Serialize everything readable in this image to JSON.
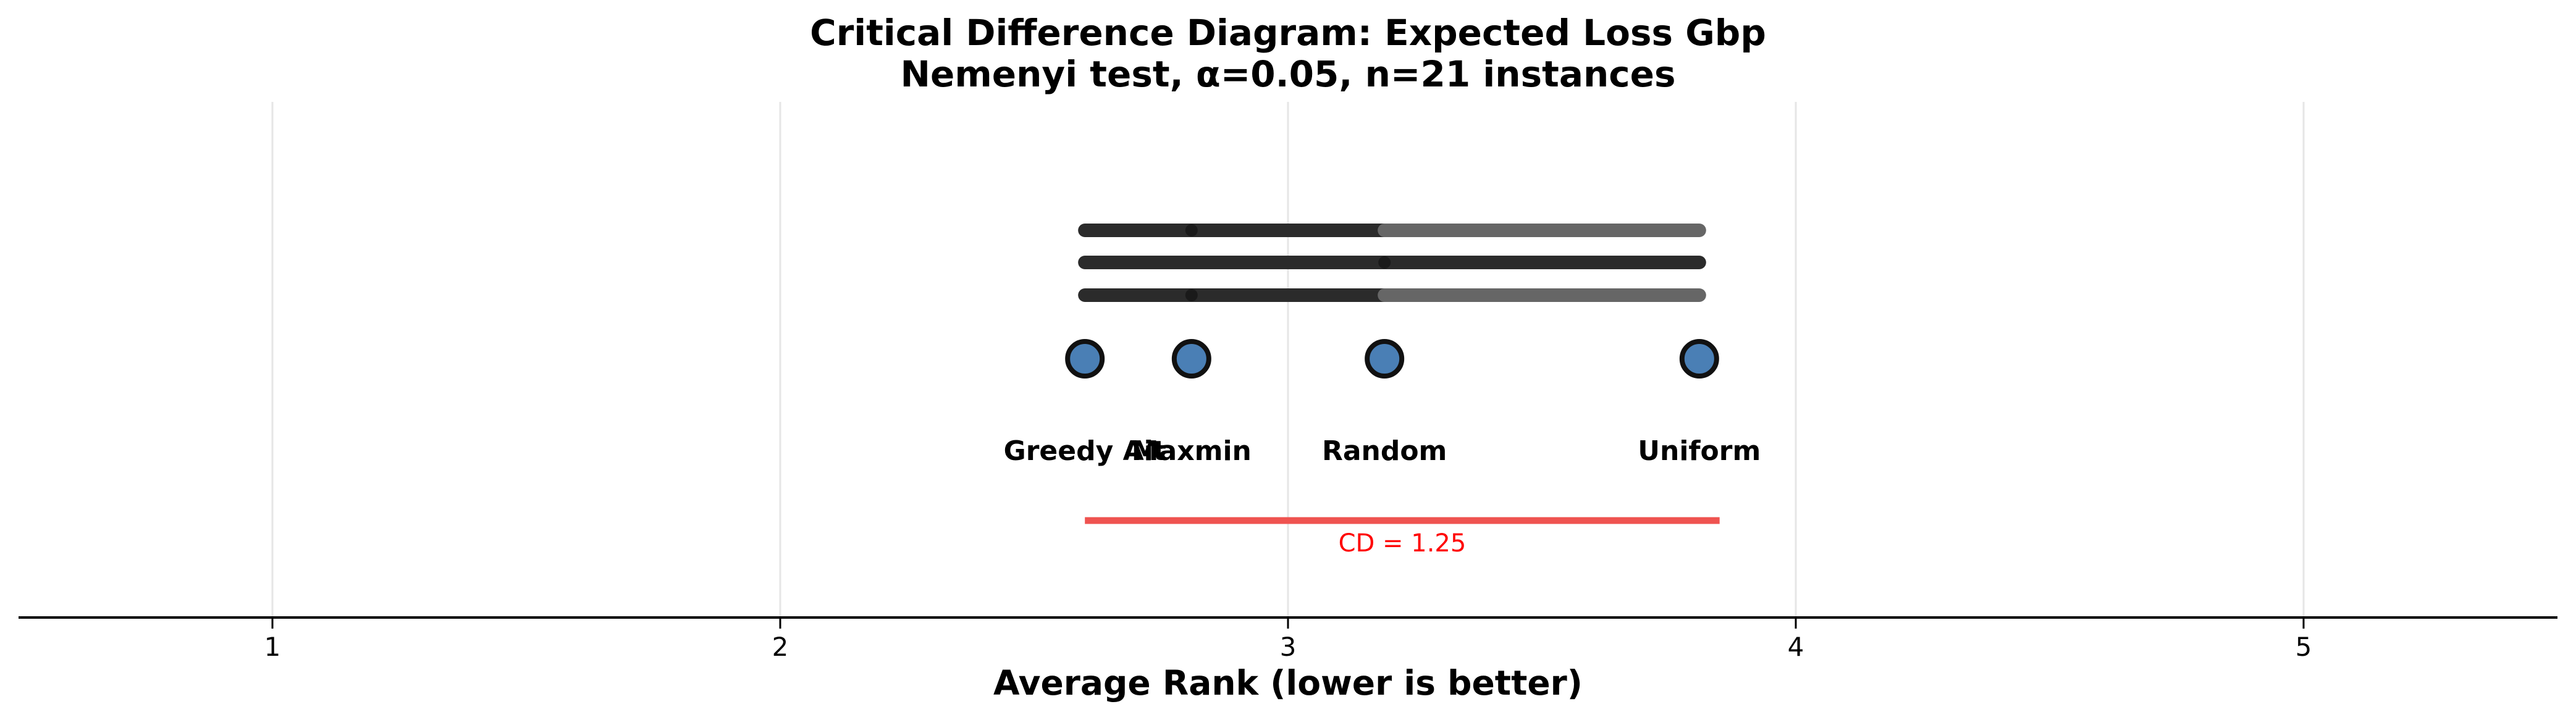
{
  "chart_data": {
    "type": "scatter",
    "title": "Critical Difference Diagram: Expected Loss Gbp",
    "subtitle": "Nemenyi test, α=0.05, n=21 instances",
    "xlabel": "Average Rank (lower is better)",
    "ylabel": "",
    "xlim": [
      0.5,
      5.5
    ],
    "ticks": [
      1,
      2,
      3,
      4,
      5
    ],
    "tick_labels": [
      "1",
      "2",
      "3",
      "4",
      "5"
    ],
    "grid": true,
    "methods": [
      {
        "name": "Greedy Ait",
        "rank": 2.6
      },
      {
        "name": "Maxmin",
        "rank": 2.81
      },
      {
        "name": "Random",
        "rank": 3.19
      },
      {
        "name": "Uniform",
        "rank": 3.81
      }
    ],
    "cliques": [
      {
        "segments": [
          {
            "from": 2.6,
            "to": 3.19,
            "tone": "dark"
          },
          {
            "from": 3.19,
            "to": 3.81,
            "tone": "gray"
          }
        ],
        "dot": 2.81
      },
      {
        "segments": [
          {
            "from": 2.6,
            "to": 3.81,
            "tone": "dark"
          }
        ],
        "dot": 3.19
      },
      {
        "segments": [
          {
            "from": 2.6,
            "to": 3.19,
            "tone": "dark"
          },
          {
            "from": 3.19,
            "to": 3.81,
            "tone": "gray"
          }
        ],
        "dot": 2.81
      }
    ],
    "critical_difference": {
      "value": 1.25,
      "start": 2.6,
      "label": "CD = 1.25"
    },
    "colors": {
      "marker_fill": "#4a7fb5",
      "marker_edge": "#111111",
      "clique_dark": "#2b2b2b",
      "clique_gray": "#666666",
      "cd_line": "#ef5350",
      "cd_text": "#ff0000",
      "grid": "#e6e6e6",
      "axis": "#000000"
    }
  }
}
